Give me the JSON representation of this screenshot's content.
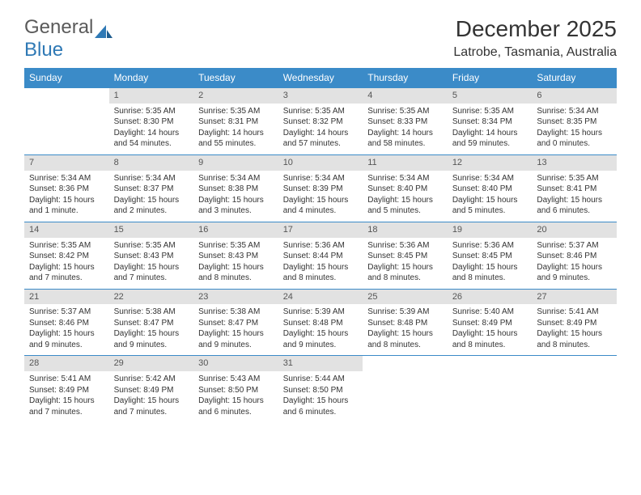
{
  "logo": {
    "text1": "General",
    "text2": "Blue",
    "color1": "#6b6b6b",
    "color2": "#2f79b5"
  },
  "title": "December 2025",
  "location": "Latrobe, Tasmania, Australia",
  "header_bg": "#3b8bc8",
  "daynum_bg": "#e2e2e2",
  "sep_color": "#3b8bc8",
  "daynames": [
    "Sunday",
    "Monday",
    "Tuesday",
    "Wednesday",
    "Thursday",
    "Friday",
    "Saturday"
  ],
  "weeks": [
    [
      null,
      {
        "n": "1",
        "sr": "Sunrise: 5:35 AM",
        "ss": "Sunset: 8:30 PM",
        "dl": "Daylight: 14 hours and 54 minutes."
      },
      {
        "n": "2",
        "sr": "Sunrise: 5:35 AM",
        "ss": "Sunset: 8:31 PM",
        "dl": "Daylight: 14 hours and 55 minutes."
      },
      {
        "n": "3",
        "sr": "Sunrise: 5:35 AM",
        "ss": "Sunset: 8:32 PM",
        "dl": "Daylight: 14 hours and 57 minutes."
      },
      {
        "n": "4",
        "sr": "Sunrise: 5:35 AM",
        "ss": "Sunset: 8:33 PM",
        "dl": "Daylight: 14 hours and 58 minutes."
      },
      {
        "n": "5",
        "sr": "Sunrise: 5:35 AM",
        "ss": "Sunset: 8:34 PM",
        "dl": "Daylight: 14 hours and 59 minutes."
      },
      {
        "n": "6",
        "sr": "Sunrise: 5:34 AM",
        "ss": "Sunset: 8:35 PM",
        "dl": "Daylight: 15 hours and 0 minutes."
      }
    ],
    [
      {
        "n": "7",
        "sr": "Sunrise: 5:34 AM",
        "ss": "Sunset: 8:36 PM",
        "dl": "Daylight: 15 hours and 1 minute."
      },
      {
        "n": "8",
        "sr": "Sunrise: 5:34 AM",
        "ss": "Sunset: 8:37 PM",
        "dl": "Daylight: 15 hours and 2 minutes."
      },
      {
        "n": "9",
        "sr": "Sunrise: 5:34 AM",
        "ss": "Sunset: 8:38 PM",
        "dl": "Daylight: 15 hours and 3 minutes."
      },
      {
        "n": "10",
        "sr": "Sunrise: 5:34 AM",
        "ss": "Sunset: 8:39 PM",
        "dl": "Daylight: 15 hours and 4 minutes."
      },
      {
        "n": "11",
        "sr": "Sunrise: 5:34 AM",
        "ss": "Sunset: 8:40 PM",
        "dl": "Daylight: 15 hours and 5 minutes."
      },
      {
        "n": "12",
        "sr": "Sunrise: 5:34 AM",
        "ss": "Sunset: 8:40 PM",
        "dl": "Daylight: 15 hours and 5 minutes."
      },
      {
        "n": "13",
        "sr": "Sunrise: 5:35 AM",
        "ss": "Sunset: 8:41 PM",
        "dl": "Daylight: 15 hours and 6 minutes."
      }
    ],
    [
      {
        "n": "14",
        "sr": "Sunrise: 5:35 AM",
        "ss": "Sunset: 8:42 PM",
        "dl": "Daylight: 15 hours and 7 minutes."
      },
      {
        "n": "15",
        "sr": "Sunrise: 5:35 AM",
        "ss": "Sunset: 8:43 PM",
        "dl": "Daylight: 15 hours and 7 minutes."
      },
      {
        "n": "16",
        "sr": "Sunrise: 5:35 AM",
        "ss": "Sunset: 8:43 PM",
        "dl": "Daylight: 15 hours and 8 minutes."
      },
      {
        "n": "17",
        "sr": "Sunrise: 5:36 AM",
        "ss": "Sunset: 8:44 PM",
        "dl": "Daylight: 15 hours and 8 minutes."
      },
      {
        "n": "18",
        "sr": "Sunrise: 5:36 AM",
        "ss": "Sunset: 8:45 PM",
        "dl": "Daylight: 15 hours and 8 minutes."
      },
      {
        "n": "19",
        "sr": "Sunrise: 5:36 AM",
        "ss": "Sunset: 8:45 PM",
        "dl": "Daylight: 15 hours and 8 minutes."
      },
      {
        "n": "20",
        "sr": "Sunrise: 5:37 AM",
        "ss": "Sunset: 8:46 PM",
        "dl": "Daylight: 15 hours and 9 minutes."
      }
    ],
    [
      {
        "n": "21",
        "sr": "Sunrise: 5:37 AM",
        "ss": "Sunset: 8:46 PM",
        "dl": "Daylight: 15 hours and 9 minutes."
      },
      {
        "n": "22",
        "sr": "Sunrise: 5:38 AM",
        "ss": "Sunset: 8:47 PM",
        "dl": "Daylight: 15 hours and 9 minutes."
      },
      {
        "n": "23",
        "sr": "Sunrise: 5:38 AM",
        "ss": "Sunset: 8:47 PM",
        "dl": "Daylight: 15 hours and 9 minutes."
      },
      {
        "n": "24",
        "sr": "Sunrise: 5:39 AM",
        "ss": "Sunset: 8:48 PM",
        "dl": "Daylight: 15 hours and 9 minutes."
      },
      {
        "n": "25",
        "sr": "Sunrise: 5:39 AM",
        "ss": "Sunset: 8:48 PM",
        "dl": "Daylight: 15 hours and 8 minutes."
      },
      {
        "n": "26",
        "sr": "Sunrise: 5:40 AM",
        "ss": "Sunset: 8:49 PM",
        "dl": "Daylight: 15 hours and 8 minutes."
      },
      {
        "n": "27",
        "sr": "Sunrise: 5:41 AM",
        "ss": "Sunset: 8:49 PM",
        "dl": "Daylight: 15 hours and 8 minutes."
      }
    ],
    [
      {
        "n": "28",
        "sr": "Sunrise: 5:41 AM",
        "ss": "Sunset: 8:49 PM",
        "dl": "Daylight: 15 hours and 7 minutes."
      },
      {
        "n": "29",
        "sr": "Sunrise: 5:42 AM",
        "ss": "Sunset: 8:49 PM",
        "dl": "Daylight: 15 hours and 7 minutes."
      },
      {
        "n": "30",
        "sr": "Sunrise: 5:43 AM",
        "ss": "Sunset: 8:50 PM",
        "dl": "Daylight: 15 hours and 6 minutes."
      },
      {
        "n": "31",
        "sr": "Sunrise: 5:44 AM",
        "ss": "Sunset: 8:50 PM",
        "dl": "Daylight: 15 hours and 6 minutes."
      },
      null,
      null,
      null
    ]
  ]
}
